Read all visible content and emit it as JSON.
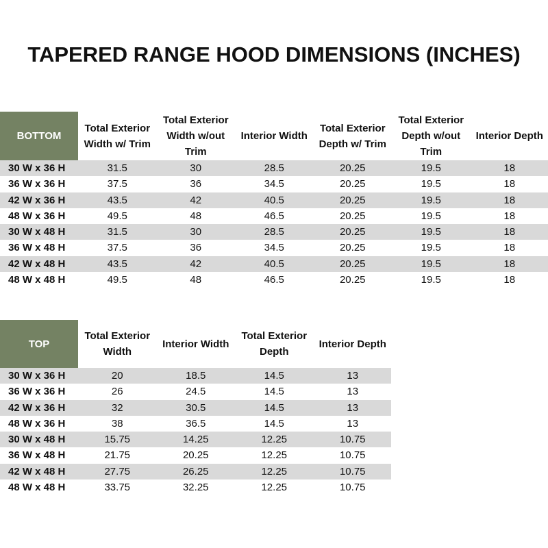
{
  "title": "TAPERED RANGE HOOD DIMENSIONS (INCHES)",
  "tables": [
    {
      "header": [
        "BOTTOM",
        "Total Exterior Width w/ Trim",
        "Total Exterior Width w/out Trim",
        "Interior Width",
        "Total Exterior Depth w/ Trim",
        "Total Exterior Depth w/out Trim",
        "Interior Depth"
      ],
      "rows": [
        [
          "30 W x 36 H",
          "31.5",
          "30",
          "28.5",
          "20.25",
          "19.5",
          "18"
        ],
        [
          "36 W x 36 H",
          "37.5",
          "36",
          "34.5",
          "20.25",
          "19.5",
          "18"
        ],
        [
          "42 W x 36 H",
          "43.5",
          "42",
          "40.5",
          "20.25",
          "19.5",
          "18"
        ],
        [
          "48 W x 36 H",
          "49.5",
          "48",
          "46.5",
          "20.25",
          "19.5",
          "18"
        ],
        [
          "30 W x 48 H",
          "31.5",
          "30",
          "28.5",
          "20.25",
          "19.5",
          "18"
        ],
        [
          "36 W x 48 H",
          "37.5",
          "36",
          "34.5",
          "20.25",
          "19.5",
          "18"
        ],
        [
          "42 W x 48 H",
          "43.5",
          "42",
          "40.5",
          "20.25",
          "19.5",
          "18"
        ],
        [
          "48 W x 48 H",
          "49.5",
          "48",
          "46.5",
          "20.25",
          "19.5",
          "18"
        ]
      ]
    },
    {
      "header": [
        "TOP",
        "Total Exterior Width",
        "Interior Width",
        "Total Exterior Depth",
        "Interior Depth"
      ],
      "rows": [
        [
          "30 W x 36 H",
          "20",
          "18.5",
          "14.5",
          "13"
        ],
        [
          "36 W x 36 H",
          "26",
          "24.5",
          "14.5",
          "13"
        ],
        [
          "42 W x 36 H",
          "32",
          "30.5",
          "14.5",
          "13"
        ],
        [
          "48 W x 36 H",
          "38",
          "36.5",
          "14.5",
          "13"
        ],
        [
          "30 W x 48 H",
          "15.75",
          "14.25",
          "12.25",
          "10.75"
        ],
        [
          "36 W x 48 H",
          "21.75",
          "20.25",
          "12.25",
          "10.75"
        ],
        [
          "42 W x 48 H",
          "27.75",
          "26.25",
          "12.25",
          "10.75"
        ],
        [
          "48 W x 48 H",
          "33.75",
          "32.25",
          "12.25",
          "10.75"
        ]
      ]
    }
  ]
}
